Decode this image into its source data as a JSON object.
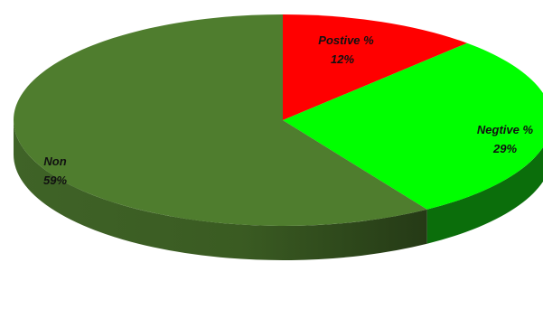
{
  "chart_data": {
    "type": "pie",
    "style": "3d",
    "slices": [
      {
        "label": "Postive %",
        "value": 12,
        "value_label": "12%",
        "color": "#ff0000"
      },
      {
        "label": "Negtive %",
        "value": 29,
        "value_label": "29%",
        "color": "#00ff00"
      },
      {
        "label": "Non",
        "value": 59,
        "value_label": "59%",
        "color": "#4f7d2e"
      }
    ],
    "side_colors": {
      "Negtive %": "#0b6e0b",
      "Non": "#3c5c22"
    },
    "legend": "none",
    "title": ""
  }
}
